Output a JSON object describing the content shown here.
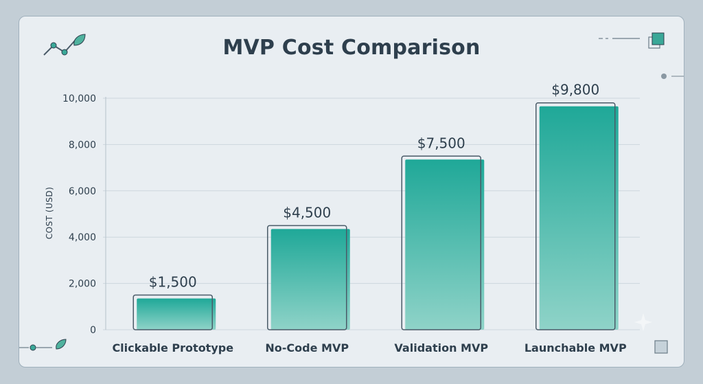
{
  "chart_data": {
    "type": "bar",
    "title": "MVP Cost Comparison",
    "xlabel": "",
    "ylabel": "COST (USD)",
    "categories": [
      "Clickable Prototype",
      "No-Code MVP",
      "Validation MVP",
      "Launchable MVP"
    ],
    "values": [
      1500,
      4500,
      7500,
      9800
    ],
    "value_labels": [
      "$1,500",
      "$4,500",
      "$7,500",
      "$9,800"
    ],
    "ylim": [
      0,
      10000
    ],
    "yticks": [
      0,
      2000,
      4000,
      6000,
      8000,
      10000
    ],
    "ytick_labels": [
      "0",
      "2,000",
      "4,000",
      "6,000",
      "8,000",
      "10,000"
    ],
    "grid": true,
    "legend": "none"
  },
  "colors": {
    "bar_top": "#1fa898",
    "bar_bottom": "#8fd3c8",
    "text": "#2e3f4d",
    "grid": "#cdd6dd",
    "accent": "#3aa898"
  },
  "icons": {
    "top_left": "trend-line-leaf-icon",
    "top_right": "overlapping-squares-icon",
    "bottom_left": "leaf-branch-icon",
    "bottom_right": "square-icon",
    "sparkle": "sparkle-icon"
  }
}
